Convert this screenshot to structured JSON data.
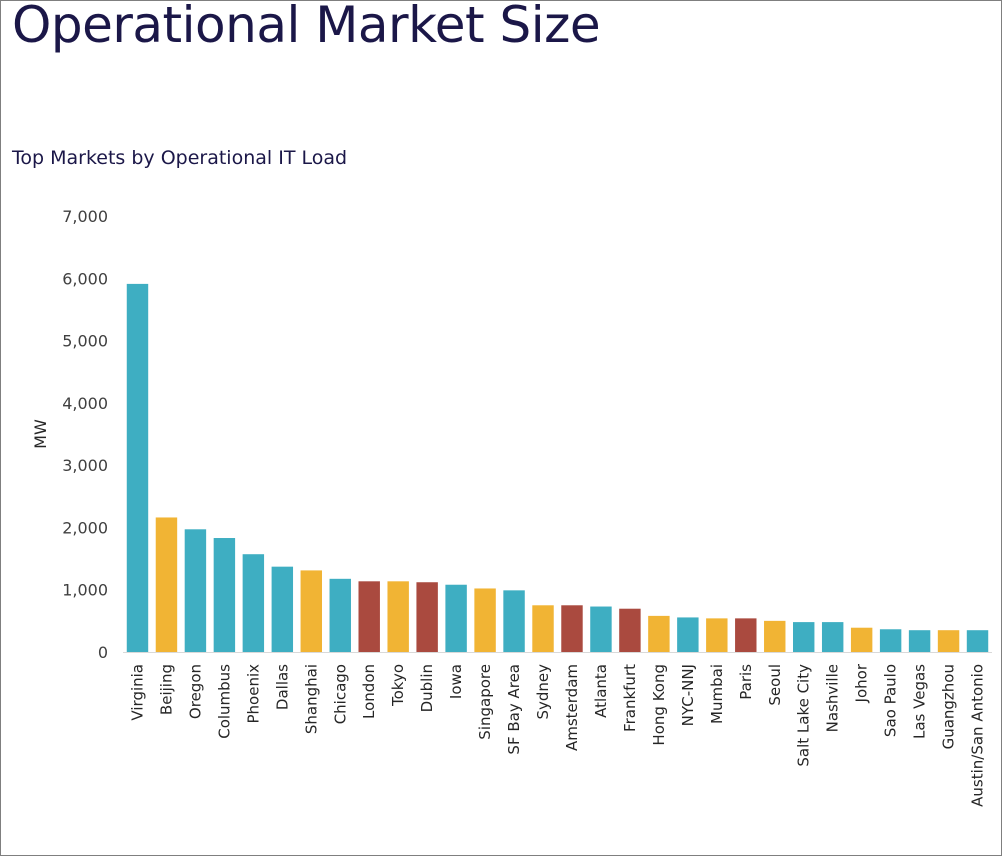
{
  "title": "Operational Market Size",
  "chart_data": {
    "type": "bar",
    "title": "Top Markets by Operational IT Load",
    "xlabel": "",
    "ylabel": "MW",
    "ylim": [
      0,
      7000
    ],
    "yticks": [
      "0",
      "1,000",
      "2,000",
      "3,000",
      "4,000",
      "5,000",
      "6,000",
      "7,000"
    ],
    "grid": false,
    "colors": {
      "teal": "#3eaec2",
      "yellow": "#f1b434",
      "red": "#aa4a3f"
    },
    "categories": [
      "Virginia",
      "Beijing",
      "Oregon",
      "Columbus",
      "Phoenix",
      "Dallas",
      "Shanghai",
      "Chicago",
      "London",
      "Tokyo",
      "Dublin",
      "Iowa",
      "Singapore",
      "SF Bay Area",
      "Sydney",
      "Amsterdam",
      "Atlanta",
      "Frankfurt",
      "Hong Kong",
      "NYC-NNJ",
      "Mumbai",
      "Paris",
      "Seoul",
      "Salt Lake City",
      "Nashville",
      "Johor",
      "Sao Paulo",
      "Las Vegas",
      "Guangzhou",
      "Austin/San Antonio"
    ],
    "values": [
      5910,
      2160,
      1970,
      1830,
      1570,
      1370,
      1310,
      1175,
      1135,
      1135,
      1120,
      1080,
      1020,
      990,
      750,
      750,
      730,
      695,
      580,
      555,
      540,
      540,
      500,
      480,
      480,
      390,
      365,
      350,
      350,
      350
    ],
    "bar_colors": [
      "teal",
      "yellow",
      "teal",
      "teal",
      "teal",
      "teal",
      "yellow",
      "teal",
      "red",
      "yellow",
      "red",
      "teal",
      "yellow",
      "teal",
      "yellow",
      "red",
      "teal",
      "red",
      "yellow",
      "teal",
      "yellow",
      "red",
      "yellow",
      "teal",
      "teal",
      "yellow",
      "teal",
      "teal",
      "yellow",
      "teal"
    ]
  }
}
